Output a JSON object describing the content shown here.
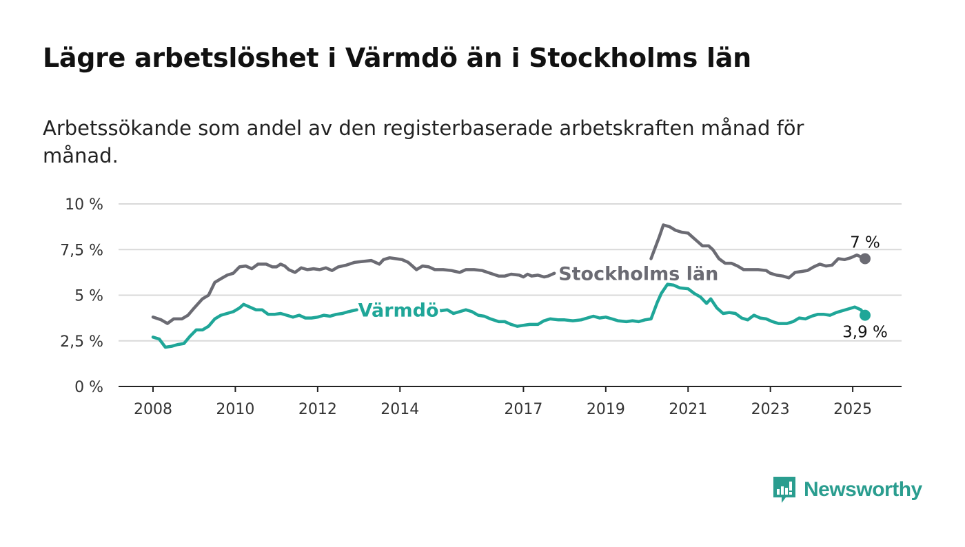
{
  "title": "Lägre arbetslöshet i Värmdö än i Stockholms län",
  "subtitle": "Arbetssökande som andel av den registerbaserade arbetskraften månad för månad.",
  "brand": "Newsworthy",
  "colors": {
    "stockholm": "#6b6b73",
    "varmdo": "#1fa698",
    "grid": "#d9d9d9",
    "axis": "#222222",
    "brand": "#2a9d8f"
  },
  "chart_data": {
    "type": "line",
    "x_unit": "year (decimal)",
    "xlim": [
      2008,
      2025.35
    ],
    "ylim": [
      0,
      10
    ],
    "y_ticks": [
      {
        "value": 0,
        "label": "0 %"
      },
      {
        "value": 2.5,
        "label": "2,5 %"
      },
      {
        "value": 5,
        "label": "5 %"
      },
      {
        "value": 7.5,
        "label": "7,5 %"
      },
      {
        "value": 10,
        "label": "10 %"
      }
    ],
    "x_ticks": [
      {
        "value": 2008,
        "label": "2008"
      },
      {
        "value": 2010,
        "label": "2010"
      },
      {
        "value": 2012,
        "label": "2012"
      },
      {
        "value": 2014,
        "label": "2014"
      },
      {
        "value": 2017,
        "label": "2017"
      },
      {
        "value": 2019,
        "label": "2019"
      },
      {
        "value": 2021,
        "label": "2021"
      },
      {
        "value": 2023,
        "label": "2023"
      },
      {
        "value": 2025,
        "label": "2025"
      }
    ],
    "grid": true,
    "series": [
      {
        "name": "Stockholms län",
        "end_label": "7 %",
        "segments": [
          [
            [
              2008.0,
              3.8
            ],
            [
              2008.2,
              3.65
            ],
            [
              2008.35,
              3.45
            ],
            [
              2008.5,
              3.7
            ],
            [
              2008.7,
              3.7
            ],
            [
              2008.85,
              3.9
            ],
            [
              2009.0,
              4.3
            ],
            [
              2009.2,
              4.8
            ],
            [
              2009.35,
              5.0
            ],
            [
              2009.5,
              5.7
            ],
            [
              2009.65,
              5.9
            ],
            [
              2009.8,
              6.1
            ],
            [
              2009.95,
              6.2
            ],
            [
              2010.1,
              6.55
            ],
            [
              2010.25,
              6.6
            ],
            [
              2010.4,
              6.45
            ],
            [
              2010.55,
              6.7
            ],
            [
              2010.75,
              6.7
            ],
            [
              2010.9,
              6.55
            ],
            [
              2011.0,
              6.55
            ],
            [
              2011.1,
              6.7
            ],
            [
              2011.2,
              6.6
            ],
            [
              2011.3,
              6.4
            ],
            [
              2011.45,
              6.25
            ],
            [
              2011.6,
              6.5
            ],
            [
              2011.75,
              6.4
            ],
            [
              2011.9,
              6.45
            ],
            [
              2012.05,
              6.4
            ],
            [
              2012.2,
              6.5
            ],
            [
              2012.35,
              6.35
            ],
            [
              2012.5,
              6.55
            ],
            [
              2012.7,
              6.65
            ],
            [
              2012.9,
              6.8
            ],
            [
              2013.1,
              6.85
            ],
            [
              2013.3,
              6.9
            ],
            [
              2013.5,
              6.7
            ],
            [
              2013.6,
              6.95
            ],
            [
              2013.75,
              7.05
            ],
            [
              2013.9,
              7.0
            ],
            [
              2014.05,
              6.95
            ],
            [
              2014.2,
              6.8
            ],
            [
              2014.3,
              6.6
            ],
            [
              2014.4,
              6.4
            ],
            [
              2014.55,
              6.6
            ],
            [
              2014.7,
              6.55
            ],
            [
              2014.85,
              6.4
            ],
            [
              2015.05,
              6.4
            ],
            [
              2015.25,
              6.35
            ],
            [
              2015.45,
              6.25
            ],
            [
              2015.6,
              6.4
            ],
            [
              2015.8,
              6.4
            ],
            [
              2016.0,
              6.35
            ],
            [
              2016.2,
              6.2
            ],
            [
              2016.4,
              6.05
            ],
            [
              2016.55,
              6.05
            ],
            [
              2016.7,
              6.15
            ],
            [
              2016.9,
              6.1
            ],
            [
              2017.0,
              6.0
            ],
            [
              2017.1,
              6.15
            ],
            [
              2017.2,
              6.05
            ],
            [
              2017.35,
              6.1
            ],
            [
              2017.5,
              6.0
            ],
            [
              2017.6,
              6.05
            ],
            [
              2017.75,
              6.2
            ]
          ],
          [
            [
              2020.1,
              7.0
            ],
            [
              2020.2,
              7.6
            ],
            [
              2020.3,
              8.2
            ],
            [
              2020.4,
              8.85
            ],
            [
              2020.55,
              8.75
            ],
            [
              2020.7,
              8.55
            ],
            [
              2020.85,
              8.45
            ],
            [
              2021.0,
              8.4
            ],
            [
              2021.1,
              8.2
            ],
            [
              2021.2,
              8.0
            ],
            [
              2021.35,
              7.7
            ],
            [
              2021.5,
              7.7
            ],
            [
              2021.6,
              7.5
            ],
            [
              2021.75,
              7.0
            ],
            [
              2021.9,
              6.75
            ],
            [
              2022.05,
              6.75
            ],
            [
              2022.2,
              6.6
            ],
            [
              2022.35,
              6.4
            ],
            [
              2022.5,
              6.4
            ],
            [
              2022.7,
              6.4
            ],
            [
              2022.9,
              6.35
            ],
            [
              2023.0,
              6.2
            ],
            [
              2023.15,
              6.1
            ],
            [
              2023.3,
              6.05
            ],
            [
              2023.45,
              5.95
            ],
            [
              2023.6,
              6.25
            ],
            [
              2023.75,
              6.3
            ],
            [
              2023.9,
              6.35
            ],
            [
              2024.05,
              6.55
            ],
            [
              2024.2,
              6.7
            ],
            [
              2024.35,
              6.6
            ],
            [
              2024.5,
              6.65
            ],
            [
              2024.65,
              7.0
            ],
            [
              2024.8,
              6.95
            ],
            [
              2024.95,
              7.05
            ],
            [
              2025.1,
              7.2
            ],
            [
              2025.3,
              7.0
            ]
          ]
        ]
      },
      {
        "name": "Värmdö",
        "end_label": "3,9 %",
        "segments": [
          [
            [
              2008.0,
              2.7
            ],
            [
              2008.15,
              2.6
            ],
            [
              2008.3,
              2.15
            ],
            [
              2008.45,
              2.2
            ],
            [
              2008.6,
              2.3
            ],
            [
              2008.75,
              2.35
            ],
            [
              2008.9,
              2.75
            ],
            [
              2009.05,
              3.1
            ],
            [
              2009.2,
              3.1
            ],
            [
              2009.35,
              3.3
            ],
            [
              2009.5,
              3.7
            ],
            [
              2009.65,
              3.9
            ],
            [
              2009.8,
              4.0
            ],
            [
              2009.95,
              4.1
            ],
            [
              2010.1,
              4.3
            ],
            [
              2010.2,
              4.5
            ],
            [
              2010.35,
              4.35
            ],
            [
              2010.5,
              4.2
            ],
            [
              2010.65,
              4.2
            ],
            [
              2010.8,
              3.95
            ],
            [
              2010.95,
              3.95
            ],
            [
              2011.1,
              4.0
            ],
            [
              2011.25,
              3.9
            ],
            [
              2011.4,
              3.8
            ],
            [
              2011.55,
              3.9
            ],
            [
              2011.7,
              3.75
            ],
            [
              2011.85,
              3.75
            ],
            [
              2012.0,
              3.8
            ],
            [
              2012.15,
              3.9
            ],
            [
              2012.3,
              3.85
            ],
            [
              2012.45,
              3.95
            ],
            [
              2012.6,
              4.0
            ],
            [
              2012.75,
              4.1
            ],
            [
              2012.95,
              4.2
            ]
          ],
          [
            [
              2014.85,
              4.2
            ],
            [
              2015.0,
              4.15
            ],
            [
              2015.15,
              4.2
            ],
            [
              2015.3,
              4.0
            ],
            [
              2015.45,
              4.1
            ],
            [
              2015.6,
              4.2
            ],
            [
              2015.75,
              4.1
            ],
            [
              2015.9,
              3.9
            ],
            [
              2016.05,
              3.85
            ],
            [
              2016.2,
              3.7
            ],
            [
              2016.4,
              3.55
            ],
            [
              2016.55,
              3.55
            ],
            [
              2016.7,
              3.4
            ],
            [
              2016.85,
              3.3
            ],
            [
              2017.0,
              3.35
            ],
            [
              2017.15,
              3.4
            ],
            [
              2017.35,
              3.4
            ],
            [
              2017.5,
              3.6
            ],
            [
              2017.65,
              3.7
            ],
            [
              2017.85,
              3.65
            ],
            [
              2018.0,
              3.65
            ],
            [
              2018.2,
              3.6
            ],
            [
              2018.4,
              3.65
            ],
            [
              2018.55,
              3.75
            ],
            [
              2018.7,
              3.85
            ],
            [
              2018.85,
              3.75
            ],
            [
              2019.0,
              3.8
            ],
            [
              2019.15,
              3.7
            ],
            [
              2019.3,
              3.6
            ],
            [
              2019.5,
              3.55
            ],
            [
              2019.65,
              3.6
            ],
            [
              2019.8,
              3.55
            ],
            [
              2019.95,
              3.65
            ],
            [
              2020.1,
              3.7
            ],
            [
              2020.25,
              4.6
            ],
            [
              2020.35,
              5.1
            ],
            [
              2020.5,
              5.6
            ],
            [
              2020.65,
              5.55
            ],
            [
              2020.8,
              5.4
            ],
            [
              2021.0,
              5.35
            ],
            [
              2021.15,
              5.1
            ],
            [
              2021.3,
              4.9
            ],
            [
              2021.45,
              4.55
            ],
            [
              2021.55,
              4.8
            ],
            [
              2021.7,
              4.3
            ],
            [
              2021.85,
              4.0
            ],
            [
              2022.0,
              4.05
            ],
            [
              2022.15,
              4.0
            ],
            [
              2022.3,
              3.75
            ],
            [
              2022.45,
              3.65
            ],
            [
              2022.6,
              3.9
            ],
            [
              2022.75,
              3.75
            ],
            [
              2022.9,
              3.7
            ],
            [
              2023.05,
              3.55
            ],
            [
              2023.2,
              3.45
            ],
            [
              2023.4,
              3.45
            ],
            [
              2023.55,
              3.55
            ],
            [
              2023.7,
              3.75
            ],
            [
              2023.85,
              3.7
            ],
            [
              2024.0,
              3.85
            ],
            [
              2024.15,
              3.95
            ],
            [
              2024.3,
              3.95
            ],
            [
              2024.45,
              3.9
            ],
            [
              2024.6,
              4.05
            ],
            [
              2024.75,
              4.15
            ],
            [
              2024.9,
              4.25
            ],
            [
              2025.05,
              4.35
            ],
            [
              2025.2,
              4.2
            ],
            [
              2025.3,
              3.9
            ]
          ]
        ]
      }
    ]
  }
}
